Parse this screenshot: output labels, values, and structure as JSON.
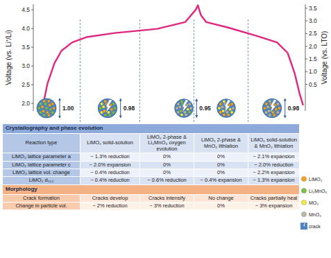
{
  "chart_data": {
    "type": "line",
    "y_label": "Voltage (vs. Li⁺/Li)",
    "y2_label": "Voltage (vs. LTO)",
    "x": [
      3.4,
      5.2,
      7.8,
      10.4,
      14.3,
      19.5,
      29.9,
      45.5,
      55.8,
      59.7,
      60.5,
      61.6,
      63.6,
      71.4,
      81.8,
      89.6,
      93.5,
      96.1,
      97.9,
      99.2
    ],
    "values": [
      1.89,
      2.53,
      3.08,
      3.41,
      3.63,
      3.77,
      3.88,
      3.99,
      4.17,
      4.5,
      4.62,
      4.36,
      4.17,
      4.03,
      3.81,
      3.63,
      3.35,
      2.8,
      2.26,
      1.95
    ],
    "color": "#e0267f",
    "line_style": "solid",
    "xlim": [
      0,
      100
    ],
    "ylim": [
      1.8,
      4.65
    ],
    "yticks": [
      {
        "value": 2,
        "label": "2.0"
      },
      2.5,
      {
        "value": 3,
        "label": "3.0"
      },
      3.5,
      {
        "value": 4,
        "label": "4.0"
      },
      4.5
    ],
    "y2lim": [
      -0.55,
      3.66
    ],
    "y2ticks": [
      0.5,
      {
        "value": 1,
        "label": "1.0"
      },
      1.5,
      {
        "value": 2,
        "label": "2.0"
      },
      2.5,
      {
        "value": 3,
        "label": "3.0"
      },
      3.5
    ],
    "tick_labels": "y"
  },
  "particles": [
    {
      "size": {
        "value": 1,
        "label": "1.00"
      },
      "phases": [
        0,
        1
      ],
      "crack": false
    },
    {
      "size": {
        "value": 0.98,
        "label": "0.98"
      },
      "phases": [
        0,
        1,
        2
      ],
      "crack": true
    },
    {
      "size": {
        "value": 0.95,
        "label": "0.95"
      },
      "phases": [
        2,
        1,
        3
      ],
      "crack": true
    },
    {
      "size": null,
      "phases": [
        2,
        3,
        0
      ],
      "crack": true
    },
    {
      "size": {
        "value": 0.98,
        "label": "0.98"
      },
      "phases": [
        0,
        3
      ],
      "crack": true
    }
  ],
  "table": {
    "sections": [
      {
        "title": "Crystallography and phase evolution",
        "rows": [
          [
            "Reaction type",
            "LiMO₂ solid-solution",
            "LiMO₂ 2-phase & Li₂MnO₃ oxygen evolution",
            "LiMO₂ 2-phase & MnO₂ lithiation",
            "LiMO₂ solid-solution & MnO₂ lithiation"
          ],
          [
            "LiMO₂ lattice parameter a",
            "~ 1.3% reduction",
            "0%",
            "0%",
            "~ 2.1% expansion"
          ],
          [
            "LiMO₂ lattice parameter c",
            "~ 2.0% expansion",
            "0%",
            "0%",
            "~ 2.0% reduction"
          ],
          [
            "LiMO₂ lattice vol. change",
            "~ 0.4% reduction",
            "0%",
            "0%",
            "~ 2.2% expansion"
          ],
          [
            "LiMO₂ d₀₁₂",
            "~ 0.4% reduction",
            "~ 0.6% reduction",
            "~ 0.4% expansion",
            "~ 1.3% expansion"
          ]
        ]
      },
      {
        "title": "Morphology",
        "rows": [
          [
            "Crack formation",
            "Cracks develop",
            "Cracks intensify",
            "No change",
            "Cracks partially heal"
          ],
          [
            "Change in particle vol.",
            "~ 2% reduction",
            "~ 3% reduction",
            "0%",
            "~ 3% expansion"
          ]
        ]
      }
    ]
  },
  "legend": [
    {
      "label": "LiMO₂",
      "color": "#f5a51c"
    },
    {
      "label": "Li₂MnO₃",
      "color": "#7cc242"
    },
    {
      "label": "MO₂",
      "color": "#f4ec3c"
    },
    {
      "label": "MnO₂",
      "color": "#b9b9a3"
    },
    {
      "label": "crack"
    }
  ]
}
